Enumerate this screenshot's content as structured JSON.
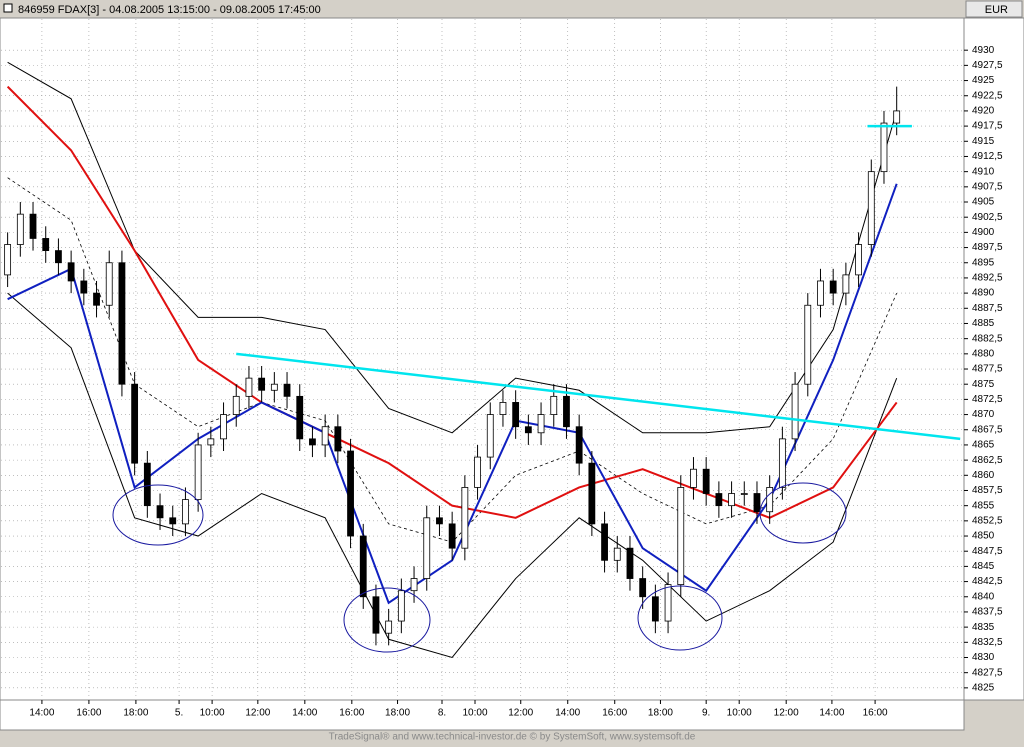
{
  "header": {
    "title": "846959  FDAX[3] - 04.08.2005 13:15:00 - 09.08.2005 17:45:00",
    "currency": "EUR"
  },
  "footer": "TradeSignal® and www.technical-investor.de © by SystemSoft, www.systemsoft.de",
  "chart_data": {
    "type": "candlestick",
    "xlim": [
      -0.6,
      75.3
    ],
    "ylim": [
      4823,
      4935.3
    ],
    "grid": true,
    "open": [
      4893,
      4898,
      4903,
      4899,
      4897,
      4895,
      4892,
      4890,
      4888,
      4895,
      4875,
      4862,
      4855,
      4853,
      4852,
      4856,
      4865,
      4866,
      4870,
      4873,
      4876,
      4874,
      4875,
      4873,
      4866,
      4865,
      4868,
      4864,
      4850,
      4840,
      4834,
      4836,
      4841,
      4843,
      4853,
      4852,
      4848,
      4858,
      4863,
      4870,
      4872,
      4868,
      4867,
      4870,
      4873,
      4868,
      4862,
      4852,
      4846,
      4848,
      4843,
      4840,
      4836,
      4842,
      4858,
      4861,
      4857,
      4855,
      4857,
      4857,
      4854,
      4858,
      4866,
      4875,
      4888,
      4892,
      4890,
      4893,
      4898,
      4910,
      4918
    ],
    "high": [
      4900,
      4905,
      4905,
      4901,
      4899,
      4897,
      4894,
      4892,
      4897,
      4897,
      4877,
      4864,
      4857,
      4855,
      4858,
      4867,
      4868,
      4872,
      4875,
      4878,
      4878,
      4877,
      4877,
      4875,
      4868,
      4870,
      4870,
      4866,
      4852,
      4842,
      4838,
      4843,
      4845,
      4855,
      4855,
      4854,
      4860,
      4865,
      4872,
      4874,
      4874,
      4870,
      4872,
      4875,
      4875,
      4870,
      4864,
      4854,
      4850,
      4850,
      4845,
      4842,
      4844,
      4860,
      4863,
      4863,
      4859,
      4859,
      4859,
      4859,
      4860,
      4868,
      4877,
      4890,
      4894,
      4894,
      4895,
      4900,
      4912,
      4920,
      4924
    ],
    "low": [
      4891,
      4896,
      4897,
      4895,
      4893,
      4890,
      4888,
      4886,
      4886,
      4873,
      4860,
      4853,
      4851,
      4850,
      4850,
      4854,
      4863,
      4864,
      4868,
      4871,
      4872,
      4872,
      4871,
      4864,
      4863,
      4863,
      4862,
      4848,
      4838,
      4832,
      4832,
      4834,
      4839,
      4841,
      4850,
      4846,
      4846,
      4856,
      4861,
      4868,
      4866,
      4865,
      4865,
      4868,
      4866,
      4860,
      4850,
      4844,
      4844,
      4841,
      4838,
      4834,
      4834,
      4840,
      4856,
      4855,
      4853,
      4853,
      4855,
      4852,
      4852,
      4856,
      4864,
      4873,
      4886,
      4888,
      4888,
      4891,
      4896,
      4908,
      4916
    ],
    "close": [
      4898,
      4903,
      4899,
      4897,
      4895,
      4892,
      4890,
      4888,
      4895,
      4875,
      4862,
      4855,
      4853,
      4852,
      4856,
      4865,
      4866,
      4870,
      4873,
      4876,
      4874,
      4875,
      4873,
      4866,
      4865,
      4868,
      4864,
      4850,
      4840,
      4834,
      4836,
      4841,
      4843,
      4853,
      4852,
      4848,
      4858,
      4863,
      4870,
      4872,
      4868,
      4867,
      4870,
      4873,
      4868,
      4862,
      4852,
      4846,
      4848,
      4843,
      4840,
      4836,
      4842,
      4858,
      4861,
      4857,
      4855,
      4857,
      4857,
      4854,
      4858,
      4866,
      4875,
      4888,
      4892,
      4890,
      4893,
      4898,
      4910,
      4918,
      4920
    ],
    "overlays": [
      {
        "color": "#000000",
        "width": 1,
        "dash": false,
        "x": [
          0,
          5,
          10,
          15,
          20,
          25,
          30,
          35,
          40,
          45,
          50,
          55,
          60,
          65,
          70
        ],
        "values": [
          4928,
          4922,
          4897,
          4886,
          4886,
          4884,
          4871,
          4867,
          4876,
          4874,
          4867,
          4867,
          4868,
          4884,
          4920
        ]
      },
      {
        "color": "#000000",
        "width": 1,
        "dash": false,
        "x": [
          0,
          5,
          10,
          15,
          20,
          25,
          30,
          35,
          40,
          45,
          50,
          55,
          60,
          65,
          70
        ],
        "values": [
          4890,
          4881,
          4853,
          4850,
          4857,
          4853,
          4833,
          4830,
          4843,
          4853,
          4846,
          4836,
          4841,
          4849,
          4876
        ]
      },
      {
        "color": "#000000",
        "width": 0.8,
        "dash": true,
        "x": [
          0,
          5,
          10,
          15,
          20,
          25,
          30,
          35,
          40,
          45,
          50,
          55,
          60,
          65,
          70
        ],
        "values": [
          4909,
          4902,
          4875,
          4868,
          4872,
          4869,
          4852,
          4849,
          4860,
          4864,
          4857,
          4852,
          4855,
          4866,
          4890
        ]
      },
      {
        "color": "#e01010",
        "width": 2,
        "dash": false,
        "x": [
          0,
          5,
          10,
          15,
          20,
          25,
          30,
          35,
          40,
          45,
          50,
          55,
          60,
          65,
          70
        ],
        "values": [
          4924,
          4913.5,
          4897,
          4879,
          4872,
          4867,
          4862,
          4855,
          4853,
          4858,
          4861,
          4857,
          4853,
          4858,
          4872
        ]
      },
      {
        "color": "#1020c0",
        "width": 2,
        "dash": false,
        "x": [
          0,
          5,
          10,
          15,
          20,
          25,
          30,
          35,
          40,
          45,
          50,
          55,
          60,
          65,
          70
        ],
        "values": [
          4889,
          4894,
          4858,
          4866,
          4872,
          4867,
          4839,
          4846,
          4869,
          4867,
          4848,
          4841,
          4856,
          4879,
          4908
        ]
      }
    ],
    "trendlines": [
      {
        "color": "#00e5ee",
        "x": [
          18,
          75
        ],
        "values": [
          4880,
          4866
        ]
      },
      {
        "color": "#00e5ee",
        "x": [
          67.7,
          71.2
        ],
        "values": [
          4917.5,
          4917.5
        ]
      }
    ],
    "xticks": [
      {
        "value": 2.7,
        "label": "14:00"
      },
      {
        "value": 6.4,
        "label": "16:00"
      },
      {
        "value": 10.1,
        "label": "18:00"
      },
      {
        "value": 13.5,
        "label": "5."
      },
      {
        "value": 16.1,
        "label": "10:00"
      },
      {
        "value": 19.7,
        "label": "12:00"
      },
      {
        "value": 23.4,
        "label": "14:00"
      },
      {
        "value": 27.1,
        "label": "16:00"
      },
      {
        "value": 30.7,
        "label": "18:00"
      },
      {
        "value": 34.2,
        "label": "8."
      },
      {
        "value": 36.8,
        "label": "10:00"
      },
      {
        "value": 40.4,
        "label": "12:00"
      },
      {
        "value": 44.1,
        "label": "14:00"
      },
      {
        "value": 47.8,
        "label": "16:00"
      },
      {
        "value": 51.4,
        "label": "18:00"
      },
      {
        "value": 55,
        "label": "9."
      },
      {
        "value": 57.6,
        "label": "10:00"
      },
      {
        "value": 61.3,
        "label": "12:00"
      },
      {
        "value": 64.9,
        "label": "14:00"
      },
      {
        "value": 68.3,
        "label": "16:00"
      }
    ],
    "yticks": [
      4825,
      {
        "value": 4827.5,
        "label": "4827,5"
      },
      4830,
      {
        "value": 4832.5,
        "label": "4832,5"
      },
      4835,
      {
        "value": 4837.5,
        "label": "4837,5"
      },
      4840,
      {
        "value": 4842.5,
        "label": "4842,5"
      },
      4845,
      {
        "value": 4847.5,
        "label": "4847,5"
      },
      4850,
      {
        "value": 4852.5,
        "label": "4852,5"
      },
      4855,
      {
        "value": 4857.5,
        "label": "4857,5"
      },
      4860,
      {
        "value": 4862.5,
        "label": "4862,5"
      },
      4865,
      {
        "value": 4867.5,
        "label": "4867,5"
      },
      4870,
      {
        "value": 4872.5,
        "label": "4872,5"
      },
      4875,
      {
        "value": 4877.5,
        "label": "4877,5"
      },
      4880,
      {
        "value": 4882.5,
        "label": "4882,5"
      },
      4885,
      {
        "value": 4887.5,
        "label": "4887,5"
      },
      4890,
      {
        "value": 4892.5,
        "label": "4892,5"
      },
      4895,
      {
        "value": 4897.5,
        "label": "4897,5"
      },
      4900,
      {
        "value": 4902.5,
        "label": "4902,5"
      },
      4905,
      {
        "value": 4907.5,
        "label": "4907,5"
      },
      4910,
      {
        "value": 4912.5,
        "label": "4912,5"
      },
      4915,
      {
        "value": 4917.5,
        "label": "4917,5"
      },
      4920,
      {
        "value": 4922.5,
        "label": "4922,5"
      },
      4925,
      {
        "value": 4927.5,
        "label": "4927,5"
      },
      4930
    ]
  }
}
